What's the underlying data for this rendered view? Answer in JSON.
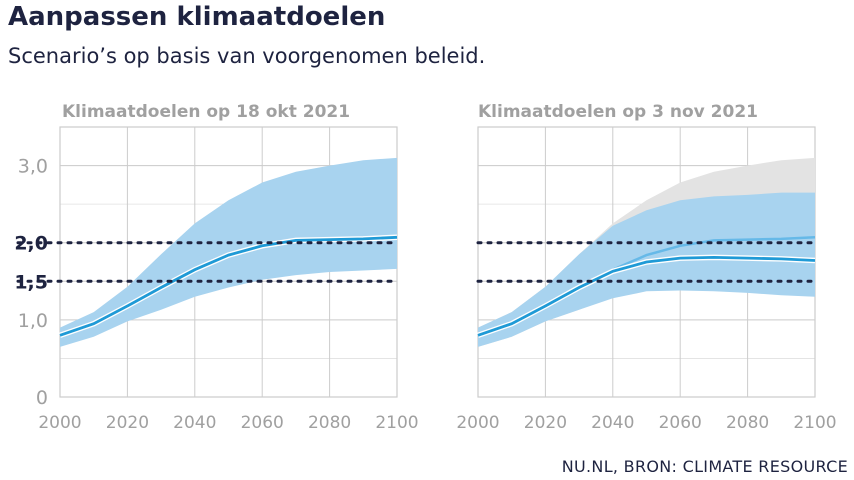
{
  "header": {
    "title": "Aanpassen klimaatdoelen",
    "subtitle": "Scenario’s op basis van voorgenomen beleid."
  },
  "source": "NU.NL, BRON: CLIMATE RESOURCE",
  "colors": {
    "band": "#a8d3ef",
    "line": "#1f9ad6",
    "line_old": "#66b9e8",
    "band_old": "#e3e3e3",
    "grid": "#cccccc",
    "threshold": "#1e2340",
    "axis_text": "#a0a0a0"
  },
  "chart_data": [
    {
      "type": "area",
      "title": "Klimaatdoelen op 18 okt 2021",
      "x": [
        2000,
        2010,
        2020,
        2030,
        2040,
        2050,
        2060,
        2070,
        2080,
        2090,
        2100
      ],
      "xticks": [
        2000,
        2020,
        2040,
        2060,
        2080,
        2100
      ],
      "xlim": [
        2000,
        2100
      ],
      "ylim": [
        0,
        3.5
      ],
      "yticks": [
        {
          "value": 0,
          "label": "0",
          "strong": false
        },
        {
          "value": 1.0,
          "label": "1,0",
          "strong": false
        },
        {
          "value": 1.5,
          "label": "1,5",
          "strong": true
        },
        {
          "value": 2.0,
          "label": "2,0",
          "strong": true
        },
        {
          "value": 3.0,
          "label": "3,0",
          "strong": false
        }
      ],
      "thresholds": [
        1.5,
        2.0
      ],
      "grid": true,
      "series": [
        {
          "role": "median",
          "values": [
            0.8,
            0.95,
            1.18,
            1.42,
            1.65,
            1.84,
            1.96,
            2.03,
            2.04,
            2.05,
            2.07
          ]
        },
        {
          "role": "band_low",
          "values": [
            0.65,
            0.78,
            0.98,
            1.13,
            1.3,
            1.42,
            1.52,
            1.58,
            1.62,
            1.64,
            1.66
          ]
        },
        {
          "role": "band_high",
          "values": [
            0.9,
            1.1,
            1.43,
            1.85,
            2.25,
            2.55,
            2.78,
            2.92,
            3.0,
            3.07,
            3.1
          ]
        }
      ]
    },
    {
      "type": "area",
      "title": "Klimaatdoelen op 3 nov 2021",
      "x": [
        2000,
        2010,
        2020,
        2030,
        2040,
        2050,
        2060,
        2070,
        2080,
        2090,
        2100
      ],
      "xticks": [
        2000,
        2020,
        2040,
        2060,
        2080,
        2100
      ],
      "xlim": [
        2000,
        2100
      ],
      "ylim": [
        0,
        3.5
      ],
      "yticks": [
        {
          "value": 0,
          "label": "",
          "strong": false
        },
        {
          "value": 1.0,
          "label": "",
          "strong": false
        },
        {
          "value": 1.5,
          "label": "",
          "strong": true
        },
        {
          "value": 2.0,
          "label": "",
          "strong": true
        },
        {
          "value": 3.0,
          "label": "",
          "strong": false
        }
      ],
      "thresholds": [
        1.5,
        2.0
      ],
      "grid": true,
      "series": [
        {
          "role": "median",
          "values": [
            0.8,
            0.95,
            1.18,
            1.42,
            1.63,
            1.75,
            1.8,
            1.81,
            1.8,
            1.79,
            1.77
          ]
        },
        {
          "role": "band_low",
          "values": [
            0.65,
            0.78,
            0.98,
            1.13,
            1.28,
            1.37,
            1.38,
            1.37,
            1.35,
            1.32,
            1.3
          ]
        },
        {
          "role": "band_high",
          "values": [
            0.9,
            1.1,
            1.43,
            1.85,
            2.22,
            2.42,
            2.55,
            2.6,
            2.62,
            2.65,
            2.65
          ]
        },
        {
          "role": "previous_median",
          "values": [
            0.8,
            0.95,
            1.18,
            1.42,
            1.65,
            1.84,
            1.96,
            2.03,
            2.04,
            2.05,
            2.07
          ]
        },
        {
          "role": "previous_band_low",
          "values": [
            0.65,
            0.78,
            0.98,
            1.13,
            1.3,
            1.42,
            1.52,
            1.58,
            1.62,
            1.64,
            1.66
          ]
        },
        {
          "role": "previous_band_high",
          "values": [
            0.9,
            1.1,
            1.43,
            1.85,
            2.25,
            2.55,
            2.78,
            2.92,
            3.0,
            3.07,
            3.1
          ]
        }
      ]
    }
  ]
}
